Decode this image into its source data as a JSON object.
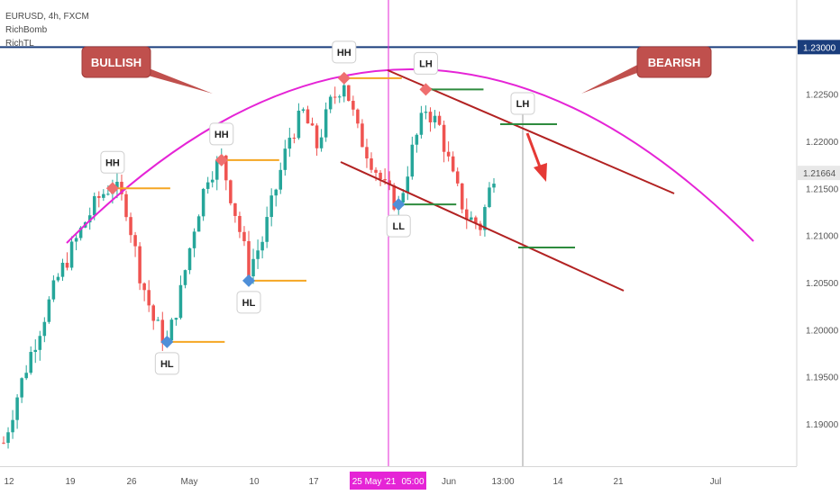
{
  "legend": {
    "symbol_line": "EURUSD, 4h, FXCM",
    "indicator_1": "RichBomb",
    "indicator_2": "RichTL"
  },
  "chart_data": {
    "type": "candlestick",
    "symbol": "EURUSD",
    "timeframe": "4h",
    "source": "FXCM",
    "ylim": [
      1.1855,
      1.235
    ],
    "y_ticks": [
      "1.19000",
      "1.19500",
      "1.20000",
      "1.20500",
      "1.21000",
      "1.21500",
      "1.22000",
      "1.22500"
    ],
    "x_ticks": [
      "12",
      "19",
      "26",
      "May",
      "10",
      "17",
      "25 May '21",
      "05:00",
      "Jun",
      "13:00",
      "14",
      "21",
      "Jul"
    ],
    "resistance_level": "1.23000",
    "last_price": "1.21664",
    "price_path": [
      [
        0,
        1.188
      ],
      [
        3,
        1.193
      ],
      [
        6,
        1.1975
      ],
      [
        9,
        1.2015
      ],
      [
        12,
        1.2055
      ],
      [
        15,
        1.2085
      ],
      [
        18,
        1.2115
      ],
      [
        21,
        1.214
      ],
      [
        24,
        1.2155
      ],
      [
        27,
        1.213
      ],
      [
        30,
        1.206
      ],
      [
        33,
        1.201
      ],
      [
        36,
        1.1985
      ],
      [
        39,
        1.204
      ],
      [
        42,
        1.211
      ],
      [
        45,
        1.2165
      ],
      [
        48,
        1.218
      ],
      [
        51,
        1.2125
      ],
      [
        54,
        1.2065
      ],
      [
        57,
        1.2095
      ],
      [
        60,
        1.215
      ],
      [
        63,
        1.2205
      ],
      [
        66,
        1.223
      ],
      [
        69,
        1.2195
      ],
      [
        72,
        1.224
      ],
      [
        75,
        1.2265
      ],
      [
        78,
        1.221
      ],
      [
        81,
        1.218
      ],
      [
        84,
        1.215
      ],
      [
        87,
        1.213
      ],
      [
        90,
        1.219
      ],
      [
        93,
        1.2235
      ],
      [
        96,
        1.2215
      ],
      [
        99,
        1.216
      ],
      [
        102,
        1.212
      ],
      [
        105,
        1.211
      ],
      [
        108,
        1.2166
      ]
    ],
    "pivots": [
      {
        "label": "HH",
        "kind": "high",
        "bar": 24,
        "price": 1.215
      },
      {
        "label": "HL",
        "kind": "low",
        "bar": 36,
        "price": 1.1987
      },
      {
        "label": "HH",
        "kind": "high",
        "bar": 48,
        "price": 1.218
      },
      {
        "label": "HL",
        "kind": "low",
        "bar": 54,
        "price": 1.2052
      },
      {
        "label": "HH",
        "kind": "high",
        "bar": 75,
        "price": 1.2267
      },
      {
        "label": "LL",
        "kind": "low",
        "bar": 87,
        "price": 1.2133
      },
      {
        "label": "LH",
        "kind": "high",
        "bar": 93,
        "price": 1.2255
      }
    ],
    "projection_label": "LH",
    "annotations": {
      "left_callout": "BULLISH",
      "right_callout": "BEARISH"
    }
  }
}
